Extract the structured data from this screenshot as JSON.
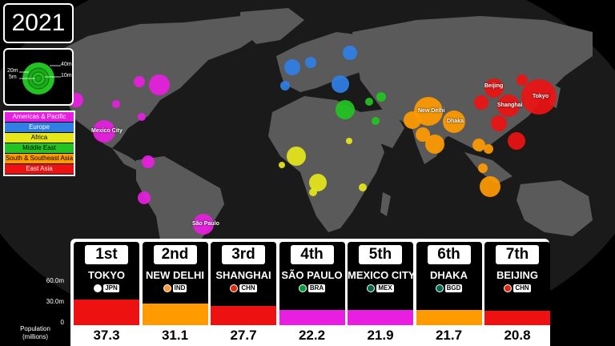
{
  "year": "2021",
  "scale": {
    "labels": [
      "40m",
      "20m",
      "10m",
      "5m"
    ]
  },
  "legend": [
    {
      "label": "Americas & Pacific",
      "color": "#e81ee0"
    },
    {
      "label": "Europe",
      "color": "#2f7fe6"
    },
    {
      "label": "Africa",
      "color": "#e6e61a"
    },
    {
      "label": "Middle East",
      "color": "#22c422"
    },
    {
      "label": "South & Southeast Asia",
      "color": "#ff9a00"
    },
    {
      "label": "East Asia",
      "color": "#ee1111"
    }
  ],
  "map_labels": {
    "mexico_city": "Mexico City",
    "sao_paulo": "São Paulo",
    "new_delhi": "New Delhi",
    "dhaka": "Dhaka",
    "beijing": "Beijing",
    "shanghai": "Shanghai",
    "tokyo": "Tokyo"
  },
  "axis": {
    "ticks": [
      "60.0m",
      "30.0m",
      "0"
    ],
    "population_label_1": "Population",
    "population_label_2": "(millions)"
  },
  "chart_data": {
    "type": "bar",
    "title": "",
    "ylabel": "Population (millions)",
    "ylim": [
      0,
      60
    ],
    "ticks": [
      0,
      30,
      60
    ],
    "categories": [
      "TOKYO",
      "NEW DELHI",
      "SHANGHAI",
      "SÃO PAULO",
      "MEXICO CITY",
      "DHAKA",
      "BEIJING"
    ],
    "ranks": [
      "1st",
      "2nd",
      "3rd",
      "4th",
      "5th",
      "6th",
      "7th"
    ],
    "countries": [
      "JPN",
      "IND",
      "CHN",
      "BRA",
      "MEX",
      "BGD",
      "CHN"
    ],
    "values": [
      37.3,
      31.1,
      27.7,
      22.2,
      21.9,
      21.7,
      20.8
    ],
    "value_labels": [
      "37.3",
      "31.1",
      "27.7",
      "22.2",
      "21.9",
      "21.7",
      "20.8"
    ],
    "bar_colors": [
      "#ee1111",
      "#ff9a00",
      "#ee1111",
      "#e81ee0",
      "#e81ee0",
      "#ff9a00",
      "#ee1111"
    ],
    "flag_colors": [
      "#ffffff",
      "#ff9933",
      "#de2910",
      "#009c3b",
      "#006847",
      "#006a4e",
      "#de2910"
    ]
  }
}
